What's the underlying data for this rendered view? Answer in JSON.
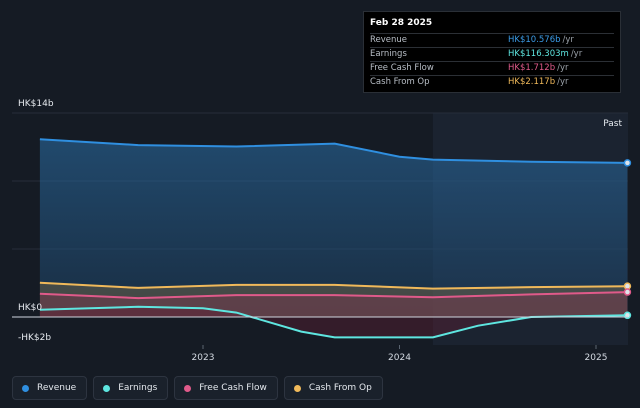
{
  "tooltip": {
    "date": "Feb 28 2025",
    "rows": [
      {
        "label": "Revenue",
        "value": "HK$10.576b",
        "unit": "/yr",
        "color": "#3b9be6"
      },
      {
        "label": "Earnings",
        "value": "HK$116.303m",
        "unit": "/yr",
        "color": "#5ee6e0"
      },
      {
        "label": "Free Cash Flow",
        "value": "HK$1.712b",
        "unit": "/yr",
        "color": "#e05a8a"
      },
      {
        "label": "Cash From Op",
        "value": "HK$2.117b",
        "unit": "/yr",
        "color": "#f0b95a"
      }
    ]
  },
  "legend": [
    {
      "label": "Revenue",
      "color": "#2f8fe0"
    },
    {
      "label": "Earnings",
      "color": "#5ee6e0"
    },
    {
      "label": "Free Cash Flow",
      "color": "#e05a8a"
    },
    {
      "label": "Cash From Op",
      "color": "#f0b95a"
    }
  ],
  "chart_data": {
    "type": "area",
    "y_top_label": "HK$14b",
    "y_zero_label": "HK$0",
    "y_bottom_label": "-HK$2b",
    "past_label": "Past",
    "ylim": [
      -2,
      14
    ],
    "x_ticks": [
      2023,
      2024,
      2025
    ],
    "x_tick_labels": [
      "2023",
      "2024",
      "2025"
    ],
    "past_start": 2024.17,
    "series": [
      {
        "name": "Revenue",
        "color": "#2f8fe0",
        "x": [
          2022.17,
          2022.67,
          2023.17,
          2023.67,
          2024.0,
          2024.17,
          2024.67,
          2025.16
        ],
        "values": [
          12.2,
          11.8,
          11.7,
          11.9,
          11.0,
          10.8,
          10.65,
          10.576
        ]
      },
      {
        "name": "Cash From Op",
        "color": "#f0b95a",
        "x": [
          2022.17,
          2022.67,
          2023.17,
          2023.67,
          2024.17,
          2024.67,
          2025.16
        ],
        "values": [
          2.35,
          2.0,
          2.2,
          2.2,
          1.95,
          2.05,
          2.117
        ]
      },
      {
        "name": "Free Cash Flow",
        "color": "#e05a8a",
        "x": [
          2022.17,
          2022.67,
          2023.17,
          2023.67,
          2024.17,
          2024.67,
          2025.16
        ],
        "values": [
          1.6,
          1.3,
          1.5,
          1.5,
          1.35,
          1.55,
          1.712
        ]
      },
      {
        "name": "Earnings",
        "color": "#5ee6e0",
        "x": [
          2022.17,
          2022.67,
          2023.0,
          2023.17,
          2023.5,
          2023.67,
          2024.0,
          2024.17,
          2024.4,
          2024.67,
          2025.16
        ],
        "values": [
          0.5,
          0.7,
          0.6,
          0.3,
          -1.0,
          -1.4,
          -1.4,
          -1.4,
          -0.6,
          0.0,
          0.116
        ]
      }
    ]
  }
}
